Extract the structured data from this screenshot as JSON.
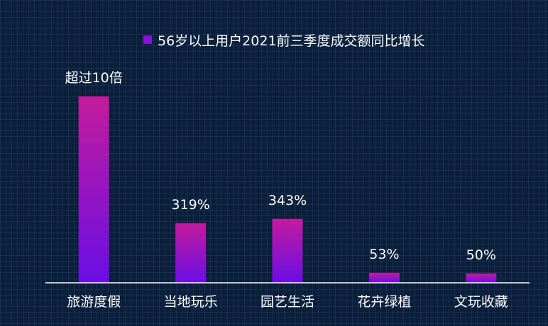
{
  "chart_data": {
    "type": "bar",
    "title": "",
    "legend": {
      "position": "top-center"
    },
    "series": [
      {
        "name": "56岁以上用户2021前三季度成交额同比增长",
        "values": [
          1000,
          319,
          343,
          53,
          50
        ],
        "labels": [
          "超过10倍",
          "319%",
          "343%",
          "53%",
          "50%"
        ]
      }
    ],
    "categories": [
      "旅游度假",
      "当地玩乐",
      "园艺生活",
      "花卉绿植",
      "文玩收藏"
    ],
    "xlabel": "",
    "ylabel": "",
    "ylim": [
      0,
      1000
    ],
    "grid": false,
    "colors": {
      "bar_top": "#c31c9c",
      "bar_bottom": "#6a0ee6",
      "axis": "#ffffff",
      "text": "#ffffff",
      "legend_swatch": "#8a12d8"
    }
  }
}
